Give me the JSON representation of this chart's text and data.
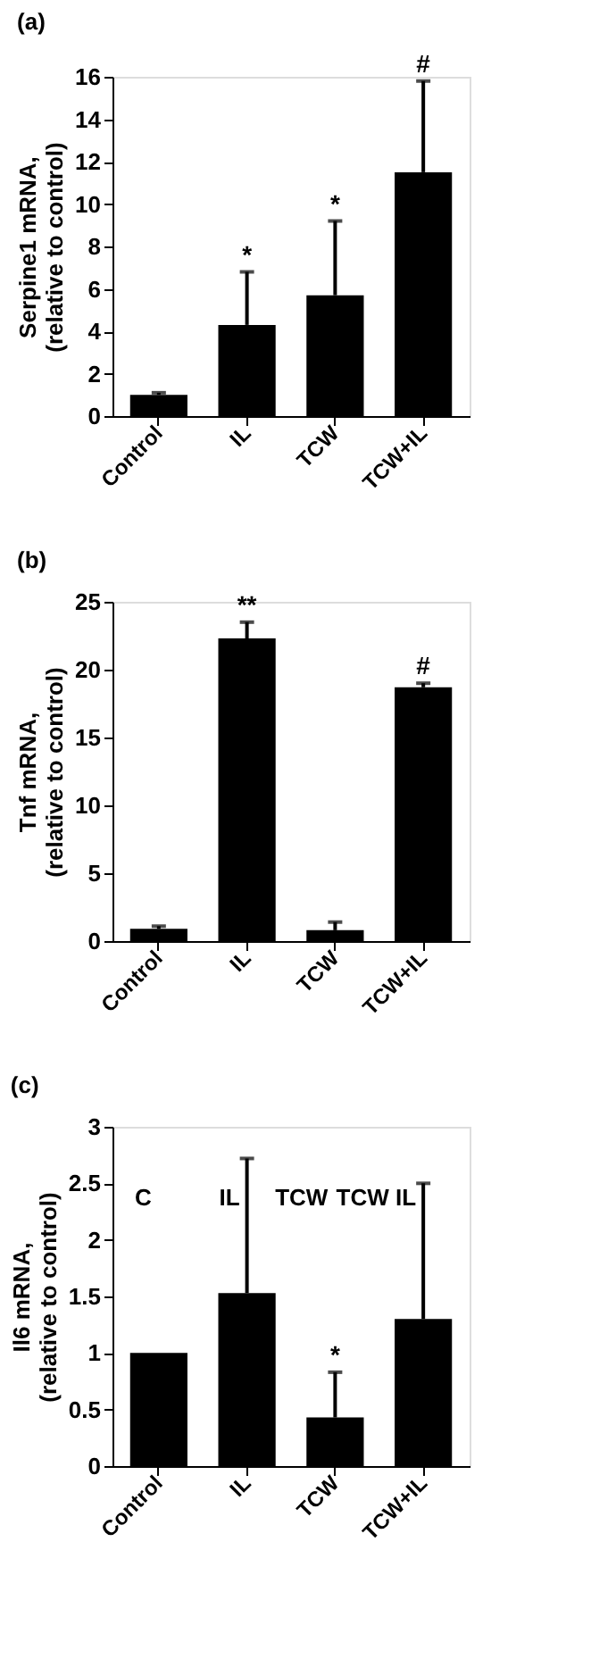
{
  "chart_data": [
    {
      "type": "bar",
      "title": "(a)",
      "categories": [
        "Control",
        "IL",
        "TCW",
        "TCW+IL"
      ],
      "values": [
        1.0,
        4.3,
        5.7,
        11.5
      ],
      "color": "#000000",
      "errors": [
        [
          1.0,
          1.1
        ],
        [
          4.3,
          6.8
        ],
        [
          5.7,
          9.2
        ],
        [
          11.5,
          15.8
        ]
      ],
      "ylabel": "Serpine1 mRNA,\n(relative to control)",
      "ylim": [
        0,
        16
      ],
      "yticks": [
        0,
        2,
        4,
        6,
        8,
        10,
        12,
        14,
        16
      ],
      "grid": false,
      "annotations": [
        {
          "text": "*",
          "x": "IL",
          "y": 6.8
        },
        {
          "text": "*",
          "x": "TCW",
          "y": 9.2
        },
        {
          "text": "#",
          "x": "TCW+IL",
          "y": 15.8
        }
      ]
    },
    {
      "type": "bar",
      "title": "(b)",
      "categories": [
        "Control",
        "IL",
        "TCW",
        "TCW+IL"
      ],
      "values": [
        0.9,
        22.3,
        0.8,
        18.7
      ],
      "color": "#000000",
      "errors": [
        [
          0.9,
          1.1
        ],
        [
          22.3,
          23.5
        ],
        [
          0.8,
          1.4
        ],
        [
          18.7,
          19.0
        ]
      ],
      "ylabel": "Tnf  mRNA,\n(relative to control)",
      "ylim": [
        0,
        25
      ],
      "yticks": [
        0,
        5,
        10,
        15,
        20,
        25
      ],
      "grid": false,
      "annotations": [
        {
          "text": "**",
          "x": "IL",
          "y": 23.5
        },
        {
          "text": "#",
          "x": "TCW+IL",
          "y": 19.0
        }
      ]
    },
    {
      "type": "bar",
      "title": "(c)",
      "categories": [
        "Control",
        "IL",
        "TCW",
        "TCW+IL"
      ],
      "values": [
        1.0,
        1.53,
        0.43,
        1.3
      ],
      "color": "#000000",
      "errors": [
        null,
        [
          1.53,
          2.72
        ],
        [
          0.43,
          0.83
        ],
        [
          1.3,
          2.5
        ]
      ],
      "ylabel": "Il6 mRNA,\n(relative to control)",
      "ylim": [
        0,
        3
      ],
      "yticks": [
        0,
        0.5,
        1,
        1.5,
        2,
        2.5,
        3
      ],
      "grid": false,
      "annotations": [
        "C",
        "IL",
        "TCW",
        "TCW IL",
        {
          "text": "*",
          "x": "TCW",
          "y": 0.83
        }
      ]
    }
  ]
}
